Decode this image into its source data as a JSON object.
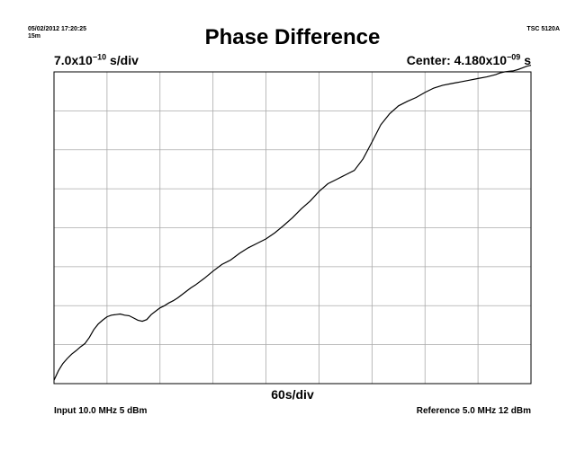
{
  "header": {
    "date_time": "05/02/2012 17:20:25",
    "span_label": "15m",
    "instrument": "TSC 5120A"
  },
  "chart_data": {
    "type": "line",
    "title": "Phase Difference",
    "y_scale_mantissa": "7.0x10",
    "y_scale_exponent": "−10",
    "y_scale_unit": " s/div",
    "center_mantissa": "Center: 4.180x10",
    "center_exponent": "−09",
    "center_unit": " s",
    "x_scale_label": "60s/div",
    "x_divisions": 9,
    "y_divisions": 8,
    "xlim": [
      0,
      540
    ],
    "ylim_ns": [
      1.38,
      6.98
    ],
    "grid": true,
    "series": [
      {
        "x": [
          0,
          5,
          10,
          15,
          20,
          25,
          30,
          35,
          40,
          45,
          50,
          55,
          60,
          65,
          70,
          75,
          80,
          85,
          90,
          95,
          100,
          105,
          110,
          115,
          120,
          125,
          130,
          135,
          140,
          145,
          150,
          155,
          160,
          170,
          180,
          190,
          200,
          210,
          220,
          230,
          240,
          250,
          260,
          270,
          280,
          290,
          300,
          310,
          320,
          330,
          340,
          350,
          360,
          370,
          380,
          390,
          400,
          410,
          420,
          430,
          440,
          450,
          460,
          470,
          480,
          490,
          500,
          505,
          510,
          515,
          520,
          525,
          530,
          535,
          540
        ],
        "y": [
          1.44,
          1.61,
          1.74,
          1.83,
          1.91,
          1.97,
          2.04,
          2.1,
          2.21,
          2.35,
          2.45,
          2.52,
          2.58,
          2.61,
          2.62,
          2.63,
          2.61,
          2.6,
          2.56,
          2.52,
          2.5,
          2.53,
          2.62,
          2.68,
          2.74,
          2.78,
          2.83,
          2.87,
          2.92,
          2.98,
          3.04,
          3.1,
          3.15,
          3.27,
          3.4,
          3.52,
          3.6,
          3.72,
          3.82,
          3.9,
          3.98,
          4.09,
          4.22,
          4.36,
          4.52,
          4.66,
          4.83,
          4.97,
          5.05,
          5.13,
          5.21,
          5.42,
          5.72,
          6.03,
          6.23,
          6.37,
          6.45,
          6.52,
          6.61,
          6.69,
          6.74,
          6.77,
          6.8,
          6.83,
          6.86,
          6.89,
          6.93,
          6.96,
          6.98,
          6.99,
          7.0,
          7.02,
          7.05,
          7.08,
          7.1
        ]
      }
    ]
  },
  "footer": {
    "input_label": "Input 10.0 MHz 5 dBm",
    "reference_label": "Reference 5.0 MHz 12 dBm"
  }
}
